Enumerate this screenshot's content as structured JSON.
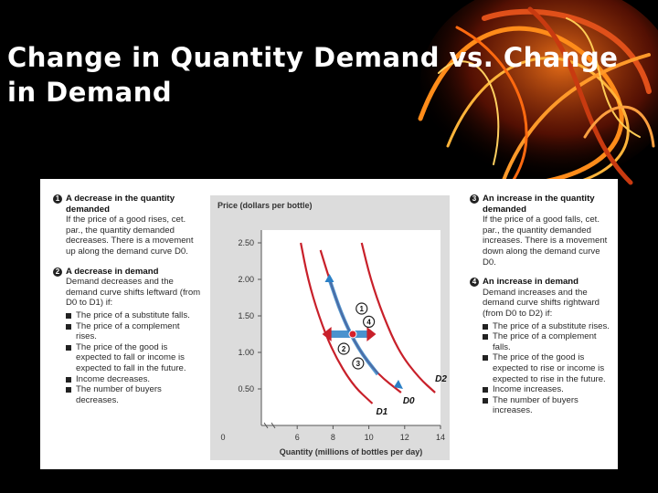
{
  "slide": {
    "title": "Change in Quantity Demand vs. Change in Demand"
  },
  "colors": {
    "background": "#000000",
    "curve": "#c8202a",
    "movement": "#2a7fc6",
    "marker": "#d61f2a"
  },
  "left_panel": {
    "sections": [
      {
        "num": "1",
        "title": "A decrease in the quantity demanded",
        "body": "If the price of a good rises, cet. par., the quantity demanded decreases. There is a movement up along the demand curve D0."
      },
      {
        "num": "2",
        "title": "A decrease in demand",
        "body": "Demand decreases and the demand curve shifts leftward (from D0 to D1) if:",
        "bullets": [
          "The price of a substitute falls.",
          "The price of a complement rises.",
          "The price of the good is expected to fall or income is expected to fall in the future.",
          "Income decreases.",
          "The number of buyers decreases."
        ]
      }
    ]
  },
  "right_panel": {
    "sections": [
      {
        "num": "3",
        "title": "An increase in the quantity demanded",
        "body": "If the price of a good falls, cet. par., the quantity demanded increases. There is a movement down along the demand curve D0."
      },
      {
        "num": "4",
        "title": "An increase in demand",
        "body": "Demand increases and the demand curve shifts rightward (from D0 to D2) if:",
        "bullets": [
          "The price of a substitute rises.",
          "The price of a complement falls.",
          "The price of the good is expected to rise or income is expected to rise in the future.",
          "Income increases.",
          "The number of buyers increases."
        ]
      }
    ]
  },
  "chart_data": {
    "type": "line",
    "ylabel": "Price (dollars per bottle)",
    "xlabel": "Quantity (millions of bottles per day)",
    "x_ticks": [
      "0",
      "6",
      "8",
      "10",
      "12",
      "14"
    ],
    "y_ticks": [
      "0.50",
      "1.00",
      "1.50",
      "2.00",
      "2.50"
    ],
    "xlim": [
      4,
      14
    ],
    "ylim": [
      0,
      2.6
    ],
    "series": [
      {
        "name": "D0",
        "x": [
          7.3,
          7.8,
          8.5,
          9.4,
          10.5,
          11.8
        ],
        "y": [
          2.4,
          2.0,
          1.5,
          1.05,
          0.7,
          0.45
        ]
      },
      {
        "name": "D1",
        "x": [
          6.2,
          6.6,
          7.2,
          8.0,
          9.1,
          10.2
        ],
        "y": [
          2.5,
          2.0,
          1.5,
          1.0,
          0.55,
          0.3
        ]
      },
      {
        "name": "D2",
        "x": [
          9.6,
          10.1,
          10.8,
          11.7,
          12.8,
          13.7
        ],
        "y": [
          2.5,
          2.0,
          1.5,
          1.0,
          0.65,
          0.45
        ]
      }
    ],
    "movement_segment": {
      "x": [
        7.8,
        11.6
      ],
      "y": [
        2.0,
        0.55
      ]
    },
    "shift_arrow": {
      "y": 1.25,
      "x": [
        7.4,
        10.4
      ]
    },
    "point": {
      "x": 9.1,
      "y": 1.25
    },
    "callouts": [
      {
        "label": "1",
        "x": 9.6,
        "y": 1.6
      },
      {
        "label": "4",
        "x": 10.0,
        "y": 1.42
      },
      {
        "label": "2",
        "x": 8.6,
        "y": 1.05
      },
      {
        "label": "3",
        "x": 9.4,
        "y": 0.85
      }
    ],
    "curve_labels": [
      {
        "text": "D2",
        "x": 13.7,
        "y": 0.6
      },
      {
        "text": "D0",
        "x": 11.9,
        "y": 0.3
      },
      {
        "text": "D1",
        "x": 10.4,
        "y": 0.15
      }
    ]
  }
}
